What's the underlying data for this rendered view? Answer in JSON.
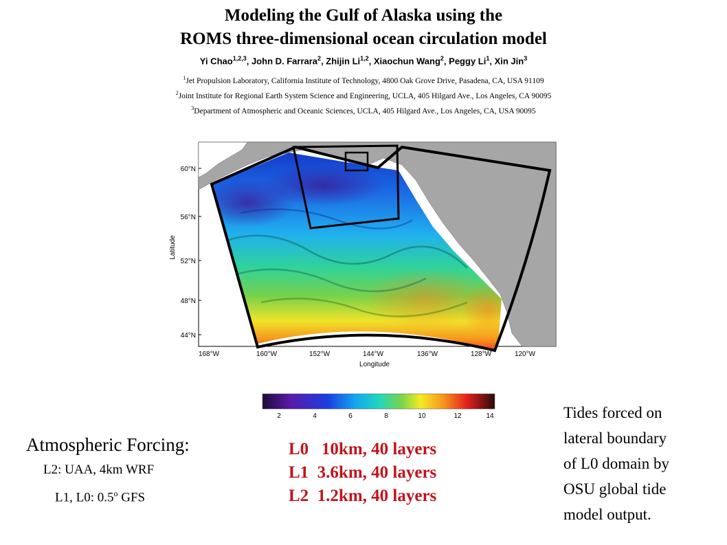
{
  "header": {
    "title_line1": "Modeling the Gulf of Alaska using the",
    "title_line2": "ROMS three-dimensional ocean circulation model",
    "authors": [
      {
        "name": "Yi Chao",
        "sup": "1,2,3"
      },
      {
        "name": "John D. Farrara",
        "sup": "2"
      },
      {
        "name": "Zhijin Li",
        "sup": "1,2"
      },
      {
        "name": "Xiaochun Wang",
        "sup": "2"
      },
      {
        "name": "Peggy Li",
        "sup": "1"
      },
      {
        "name": "Xin Jin",
        "sup": "3"
      }
    ],
    "affiliations": [
      {
        "sup": "1",
        "text": "Jet Propulsion Laboratory, California Institute of Technology, 4800 Oak Grove Drive, Pasadena, CA, USA 91109"
      },
      {
        "sup": "2",
        "text": "Joint Institute for Regional Earth System Science and Engineering, UCLA, 405 Hilgard Ave., Los Angeles, CA 90095"
      },
      {
        "sup": "3",
        "text": "Department of Atmospheric and Oceanic Sciences, UCLA, 405 Hilgard Ave., Los Angeles, CA, USA 90095"
      }
    ]
  },
  "map": {
    "ylabel": "Latitude",
    "xlabel": "Longitude",
    "lat_ticks": [
      "60°N",
      "56°N",
      "52°N",
      "48°N",
      "44°N"
    ],
    "lon_ticks": [
      "168°W",
      "160°W",
      "152°W",
      "144°W",
      "136°W",
      "128°W",
      "120°W"
    ],
    "colorbar_ticks": [
      "2",
      "4",
      "6",
      "8",
      "10",
      "12",
      "14"
    ],
    "colors": {
      "land": "#a6a6a6",
      "domain_outline": "#000000"
    }
  },
  "forcing": {
    "heading": "Atmospheric  Forcing:",
    "line1": "L2:  UAA, 4km WRF",
    "line2_pre": "L1, L0:  0.5",
    "line2_deg": "o",
    "line2_post": " GFS"
  },
  "levels": [
    "L0   10km, 40 layers",
    "L1  3.6km, 40 layers",
    "L2  1.2km, 40 layers"
  ],
  "tides": {
    "lines": [
      "Tides forced on",
      "lateral boundary",
      "of L0 domain by",
      "OSU global tide",
      "model output."
    ]
  }
}
